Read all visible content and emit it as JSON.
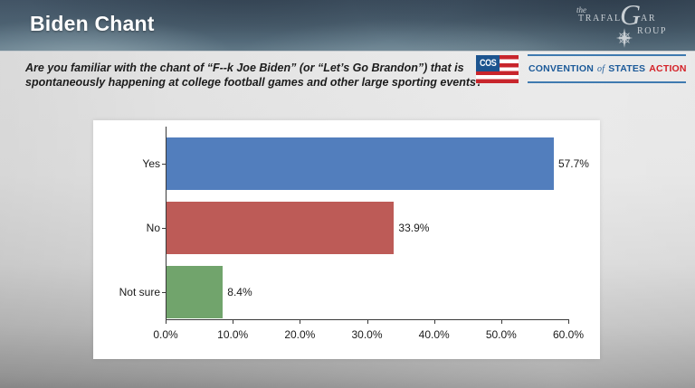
{
  "header": {
    "title": "Biden Chant",
    "trafalgar_logo": {
      "the": "the",
      "part1": "TRAFAL",
      "g": "G",
      "part2": "AR",
      "part3": "ROUP"
    }
  },
  "question": {
    "line1": "Are you familiar with the chant of “F--k Joe Biden” (or “Let’s Go Brandon”) that is",
    "line2": "spontaneously happening at college football games and other large sporting events?"
  },
  "cos_logo": {
    "abbr": "COS",
    "word_convention": "CONVENTION",
    "word_of": "of",
    "word_states": "STATES",
    "word_action": "ACTION",
    "blue": "#1c5a99",
    "red": "#d42127"
  },
  "chart_data": {
    "type": "bar",
    "orientation": "horizontal",
    "title": "",
    "xlabel": "",
    "ylabel": "",
    "categories": [
      "Yes",
      "No",
      "Not sure"
    ],
    "values": [
      57.7,
      33.9,
      8.4
    ],
    "value_labels": [
      "57.7%",
      "33.9%",
      "8.4%"
    ],
    "bar_colors": [
      "#527EBD",
      "#BD5B57",
      "#71A46C"
    ],
    "x_ticks": [
      "0.0%",
      "10.0%",
      "20.0%",
      "30.0%",
      "40.0%",
      "50.0%",
      "60.0%"
    ],
    "xlim": [
      0,
      60
    ],
    "grid": false,
    "legend": false
  }
}
